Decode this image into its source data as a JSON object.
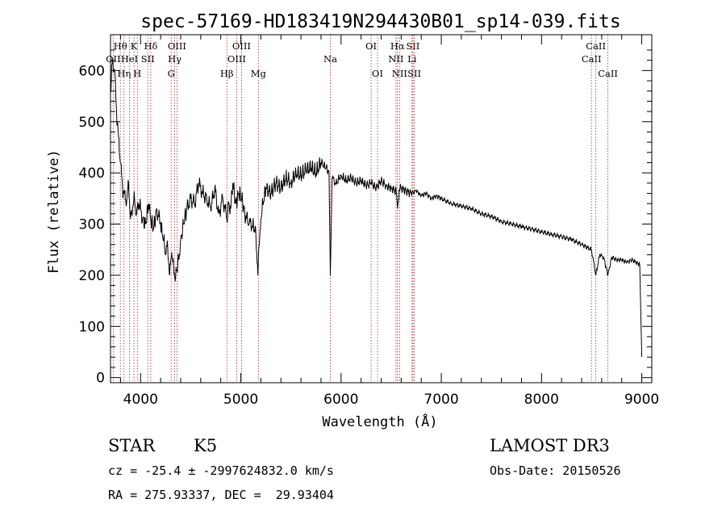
{
  "chart_data": {
    "type": "line",
    "title": "spec-57169-HD183419N294430B01_sp14-039.fits",
    "xlabel": "Wavelength (Å)",
    "ylabel": "Flux (relative)",
    "xlim": [
      3700,
      9100
    ],
    "ylim": [
      -10,
      670
    ],
    "xticks": [
      4000,
      5000,
      6000,
      7000,
      8000,
      9000
    ],
    "yticks": [
      0,
      100,
      200,
      300,
      400,
      500,
      600
    ],
    "grid": false,
    "line_color": "#000000",
    "marker_color": "#b22222",
    "series": [
      {
        "x": [
          3700,
          3720,
          3740,
          3760,
          3780,
          3800,
          3820,
          3840,
          3860,
          3880,
          3900,
          3920,
          3940,
          3960,
          3980,
          4000,
          4020,
          4050,
          4080,
          4100,
          4130,
          4160,
          4200,
          4230,
          4250,
          4270,
          4290,
          4310,
          4330,
          4350,
          4380,
          4400,
          4430,
          4460,
          4500,
          4540,
          4580,
          4620,
          4660,
          4700,
          4740,
          4780,
          4820,
          4861,
          4880,
          4900,
          4920,
          4950,
          4980,
          5010,
          5040,
          5080,
          5120,
          5150,
          5170,
          5183,
          5200,
          5220,
          5250,
          5300,
          5350,
          5400,
          5450,
          5500,
          5550,
          5600,
          5650,
          5700,
          5750,
          5800,
          5850,
          5880,
          5893,
          5910,
          5950,
          6000,
          6050,
          6100,
          6150,
          6200,
          6250,
          6300,
          6350,
          6400,
          6450,
          6500,
          6550,
          6563,
          6580,
          6600,
          6650,
          6700,
          6750,
          6800,
          6850,
          6900,
          6950,
          7000,
          7100,
          7200,
          7300,
          7400,
          7500,
          7600,
          7700,
          7800,
          7900,
          8000,
          8100,
          8200,
          8300,
          8400,
          8498,
          8542,
          8580,
          8620,
          8662,
          8700,
          8750,
          8800,
          8850,
          8900,
          8950,
          8980,
          9000
        ],
        "values": [
          560,
          620,
          600,
          520,
          470,
          420,
          370,
          360,
          340,
          380,
          310,
          330,
          350,
          320,
          340,
          330,
          310,
          300,
          340,
          310,
          290,
          330,
          300,
          270,
          240,
          260,
          200,
          245,
          210,
          200,
          230,
          270,
          300,
          330,
          350,
          340,
          380,
          360,
          350,
          330,
          370,
          320,
          350,
          310,
          340,
          330,
          380,
          340,
          360,
          350,
          320,
          300,
          300,
          280,
          200,
          260,
          310,
          340,
          370,
          360,
          380,
          370,
          390,
          380,
          400,
          395,
          405,
          410,
          400,
          420,
          410,
          400,
          200,
          390,
          380,
          395,
          385,
          390,
          380,
          385,
          375,
          380,
          370,
          385,
          375,
          370,
          365,
          330,
          368,
          370,
          365,
          360,
          365,
          355,
          360,
          350,
          355,
          350,
          340,
          335,
          330,
          320,
          315,
          305,
          300,
          295,
          290,
          285,
          280,
          275,
          270,
          260,
          250,
          200,
          240,
          235,
          200,
          235,
          230,
          230,
          225,
          230,
          225,
          220,
          40
        ]
      }
    ]
  },
  "spectral_lines": [
    {
      "label": "OII",
      "x": 3727,
      "row": 1
    },
    {
      "label": "Hθ",
      "x": 3798,
      "row": 0
    },
    {
      "label": "Hη",
      "x": 3835,
      "row": 2
    },
    {
      "label": "HeI",
      "x": 3889,
      "row": 1
    },
    {
      "label": "K",
      "x": 3934,
      "row": 0
    },
    {
      "label": "H",
      "x": 3968,
      "row": 2
    },
    {
      "label": "SII",
      "x": 4072,
      "row": 1
    },
    {
      "label": "Hδ",
      "x": 4102,
      "row": 0
    },
    {
      "label": "Hγ",
      "x": 4340,
      "row": 1
    },
    {
      "label": "G",
      "x": 4305,
      "row": 2
    },
    {
      "label": "OIII",
      "x": 4363,
      "row": 0
    },
    {
      "label": "Hβ",
      "x": 4861,
      "row": 2
    },
    {
      "label": "OIII",
      "x": 4959,
      "row": 1
    },
    {
      "label": "OIII",
      "x": 5007,
      "row": 0
    },
    {
      "label": "Mg",
      "x": 5175,
      "row": 2
    },
    {
      "label": "Na",
      "x": 5893,
      "row": 1
    },
    {
      "label": "OI",
      "x": 6300,
      "row": 0
    },
    {
      "label": "OI",
      "x": 6364,
      "row": 2
    },
    {
      "label": "NII",
      "x": 6548,
      "row": 1
    },
    {
      "label": "Hα",
      "x": 6563,
      "row": 0
    },
    {
      "label": "NII",
      "x": 6584,
      "row": 2
    },
    {
      "label": "SII",
      "x": 6717,
      "row": 0
    },
    {
      "label": "Li",
      "x": 6708,
      "row": 1
    },
    {
      "label": "SII",
      "x": 6731,
      "row": 2
    },
    {
      "label": "CaII",
      "x": 8498,
      "row": 1
    },
    {
      "label": "CaII",
      "x": 8542,
      "row": 0
    },
    {
      "label": "CaII",
      "x": 8662,
      "row": 2
    }
  ],
  "info": {
    "class": "STAR",
    "subclass": "K5",
    "survey": "LAMOST DR3",
    "cz": "cz = -25.4 ± -2997624832.0 km/s",
    "obs_date": "Obs-Date: 20150526",
    "coords": "RA = 275.93337, DEC =  29.93404"
  }
}
